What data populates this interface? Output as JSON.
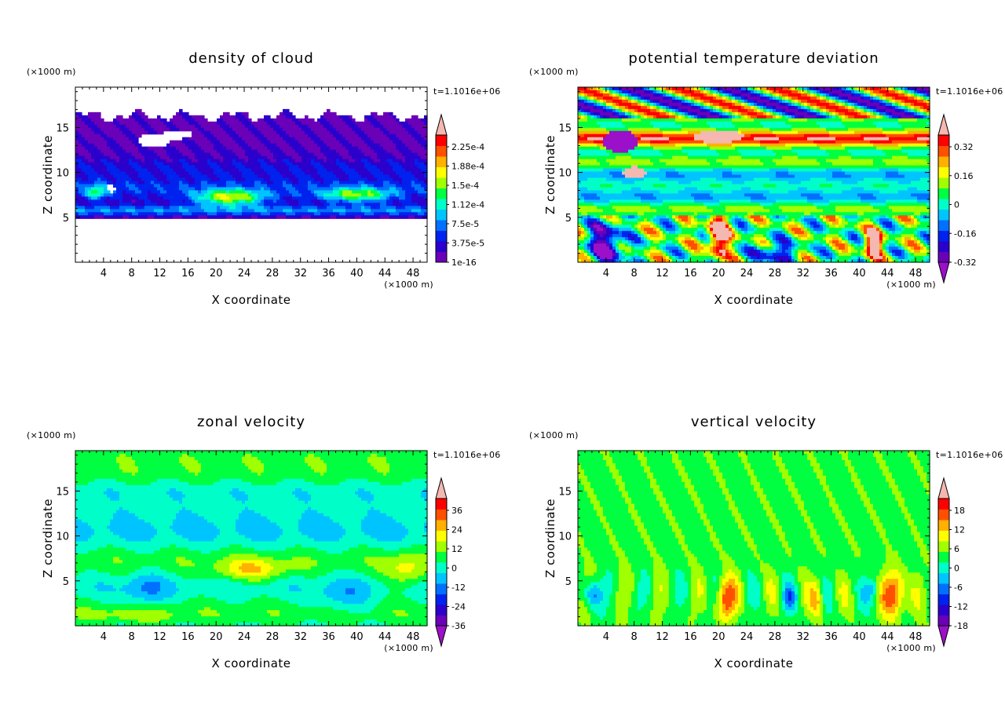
{
  "chart_data": [
    {
      "type": "heatmap",
      "title": "density of cloud",
      "xlabel": "X coordinate",
      "ylabel": "Z coordinate",
      "x_units": "(×1000 m)",
      "y_units": "(×1000 m)",
      "time_label": "t=1.1016e+06",
      "xlim": [
        0,
        50
      ],
      "ylim": [
        0,
        19.5
      ],
      "xticks": [
        4,
        8,
        12,
        16,
        20,
        24,
        28,
        32,
        36,
        40,
        44,
        48
      ],
      "yticks": [
        5,
        10,
        15
      ],
      "colorbar": {
        "labels": [
          "2.25e-4",
          "1.88e-4",
          "1.5e-4",
          "1.12e-4",
          "7.5e-5",
          "3.75e-5",
          "1e-16"
        ],
        "colors": [
          "#6a00b8",
          "#2b00cc",
          "#0022ee",
          "#0070ff",
          "#00c4ff",
          "#00ffc8",
          "#00ff40",
          "#a0ff00",
          "#ffff00",
          "#ffb000",
          "#ff5000",
          "#ff0000"
        ],
        "top_arrow": "#f4b8b0",
        "bottom_arrow": "none"
      },
      "field": "cloud",
      "grid": false
    },
    {
      "type": "heatmap",
      "title": "potential temperature deviation",
      "xlabel": "X coordinate",
      "ylabel": "Z coordinate",
      "x_units": "(×1000 m)",
      "y_units": "(×1000 m)",
      "time_label": "t=1.1016e+06",
      "xlim": [
        0,
        50
      ],
      "ylim": [
        0,
        19.5
      ],
      "xticks": [
        4,
        8,
        12,
        16,
        20,
        24,
        28,
        32,
        36,
        40,
        44,
        48
      ],
      "yticks": [
        5,
        10,
        15
      ],
      "colorbar": {
        "labels": [
          "0.32",
          "0.16",
          "0",
          "-0.16",
          "-0.32"
        ],
        "colors": [
          "#6a00b8",
          "#2b00cc",
          "#0022ee",
          "#0070ff",
          "#00c4ff",
          "#00ffc8",
          "#00ff40",
          "#a0ff00",
          "#ffff00",
          "#ffb000",
          "#ff5000",
          "#ff0000"
        ],
        "top_arrow": "#f4b8b0",
        "bottom_arrow": "#9b10c8"
      },
      "field": "theta",
      "grid": false
    },
    {
      "type": "heatmap",
      "title": "zonal velocity",
      "xlabel": "X coordinate",
      "ylabel": "Z coordinate",
      "x_units": "(×1000 m)",
      "y_units": "(×1000 m)",
      "time_label": "t=1.1016e+06",
      "xlim": [
        0,
        50
      ],
      "ylim": [
        0,
        19.5
      ],
      "xticks": [
        4,
        8,
        12,
        16,
        20,
        24,
        28,
        32,
        36,
        40,
        44,
        48
      ],
      "yticks": [
        5,
        10,
        15
      ],
      "colorbar": {
        "labels": [
          "36",
          "24",
          "12",
          "0",
          "-12",
          "-24",
          "-36"
        ],
        "colors": [
          "#6a00b8",
          "#2b00cc",
          "#0022ee",
          "#0070ff",
          "#00c4ff",
          "#00ffc8",
          "#00ff40",
          "#a0ff00",
          "#ffff00",
          "#ffb000",
          "#ff5000",
          "#ff0000"
        ],
        "top_arrow": "#f4b8b0",
        "bottom_arrow": "#9b10c8"
      },
      "field": "zonal",
      "grid": false
    },
    {
      "type": "heatmap",
      "title": "vertical velocity",
      "xlabel": "X coordinate",
      "ylabel": "Z coordinate",
      "x_units": "(×1000 m)",
      "y_units": "(×1000 m)",
      "time_label": "t=1.1016e+06",
      "xlim": [
        0,
        50
      ],
      "ylim": [
        0,
        19.5
      ],
      "xticks": [
        4,
        8,
        12,
        16,
        20,
        24,
        28,
        32,
        36,
        40,
        44,
        48
      ],
      "yticks": [
        5,
        10,
        15
      ],
      "colorbar": {
        "labels": [
          "18",
          "12",
          "6",
          "0",
          "-6",
          "-12",
          "-18"
        ],
        "colors": [
          "#6a00b8",
          "#2b00cc",
          "#0022ee",
          "#0070ff",
          "#00c4ff",
          "#00ffc8",
          "#00ff40",
          "#a0ff00",
          "#ffff00",
          "#ffb000",
          "#ff5000",
          "#ff0000"
        ],
        "top_arrow": "#f4b8b0",
        "bottom_arrow": "#9b10c8"
      },
      "field": "vertical",
      "grid": false
    }
  ]
}
